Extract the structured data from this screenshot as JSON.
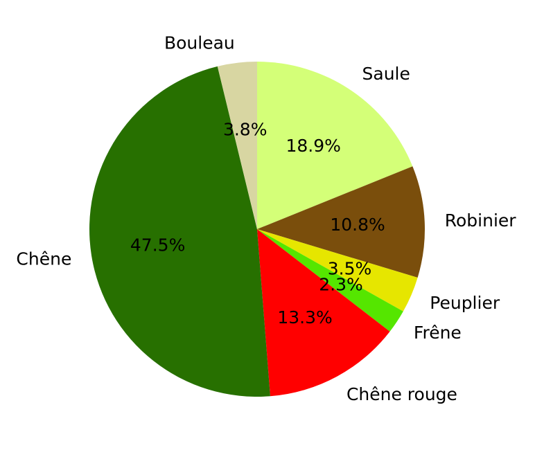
{
  "chart_data": {
    "type": "pie",
    "start_angle_deg": 90,
    "direction": "clockwise",
    "slices": [
      {
        "label": "Saule",
        "value": 18.9,
        "pct_label": "18.9%",
        "color": "#d4ff78"
      },
      {
        "label": "Robinier",
        "value": 10.8,
        "pct_label": "10.8%",
        "color": "#7a4e0c"
      },
      {
        "label": "Peuplier",
        "value": 3.5,
        "pct_label": "3.5%",
        "color": "#e6e600"
      },
      {
        "label": "Frêne",
        "value": 2.3,
        "pct_label": "2.3%",
        "color": "#55e600"
      },
      {
        "label": "Chêne rouge",
        "value": 13.3,
        "pct_label": "13.3%",
        "color": "#ff0000"
      },
      {
        "label": "Chêne",
        "value": 47.5,
        "pct_label": "47.5%",
        "color": "#277000"
      },
      {
        "label": "Bouleau",
        "value": 3.8,
        "pct_label": "3.8%",
        "color": "#d8d6a2"
      }
    ]
  }
}
